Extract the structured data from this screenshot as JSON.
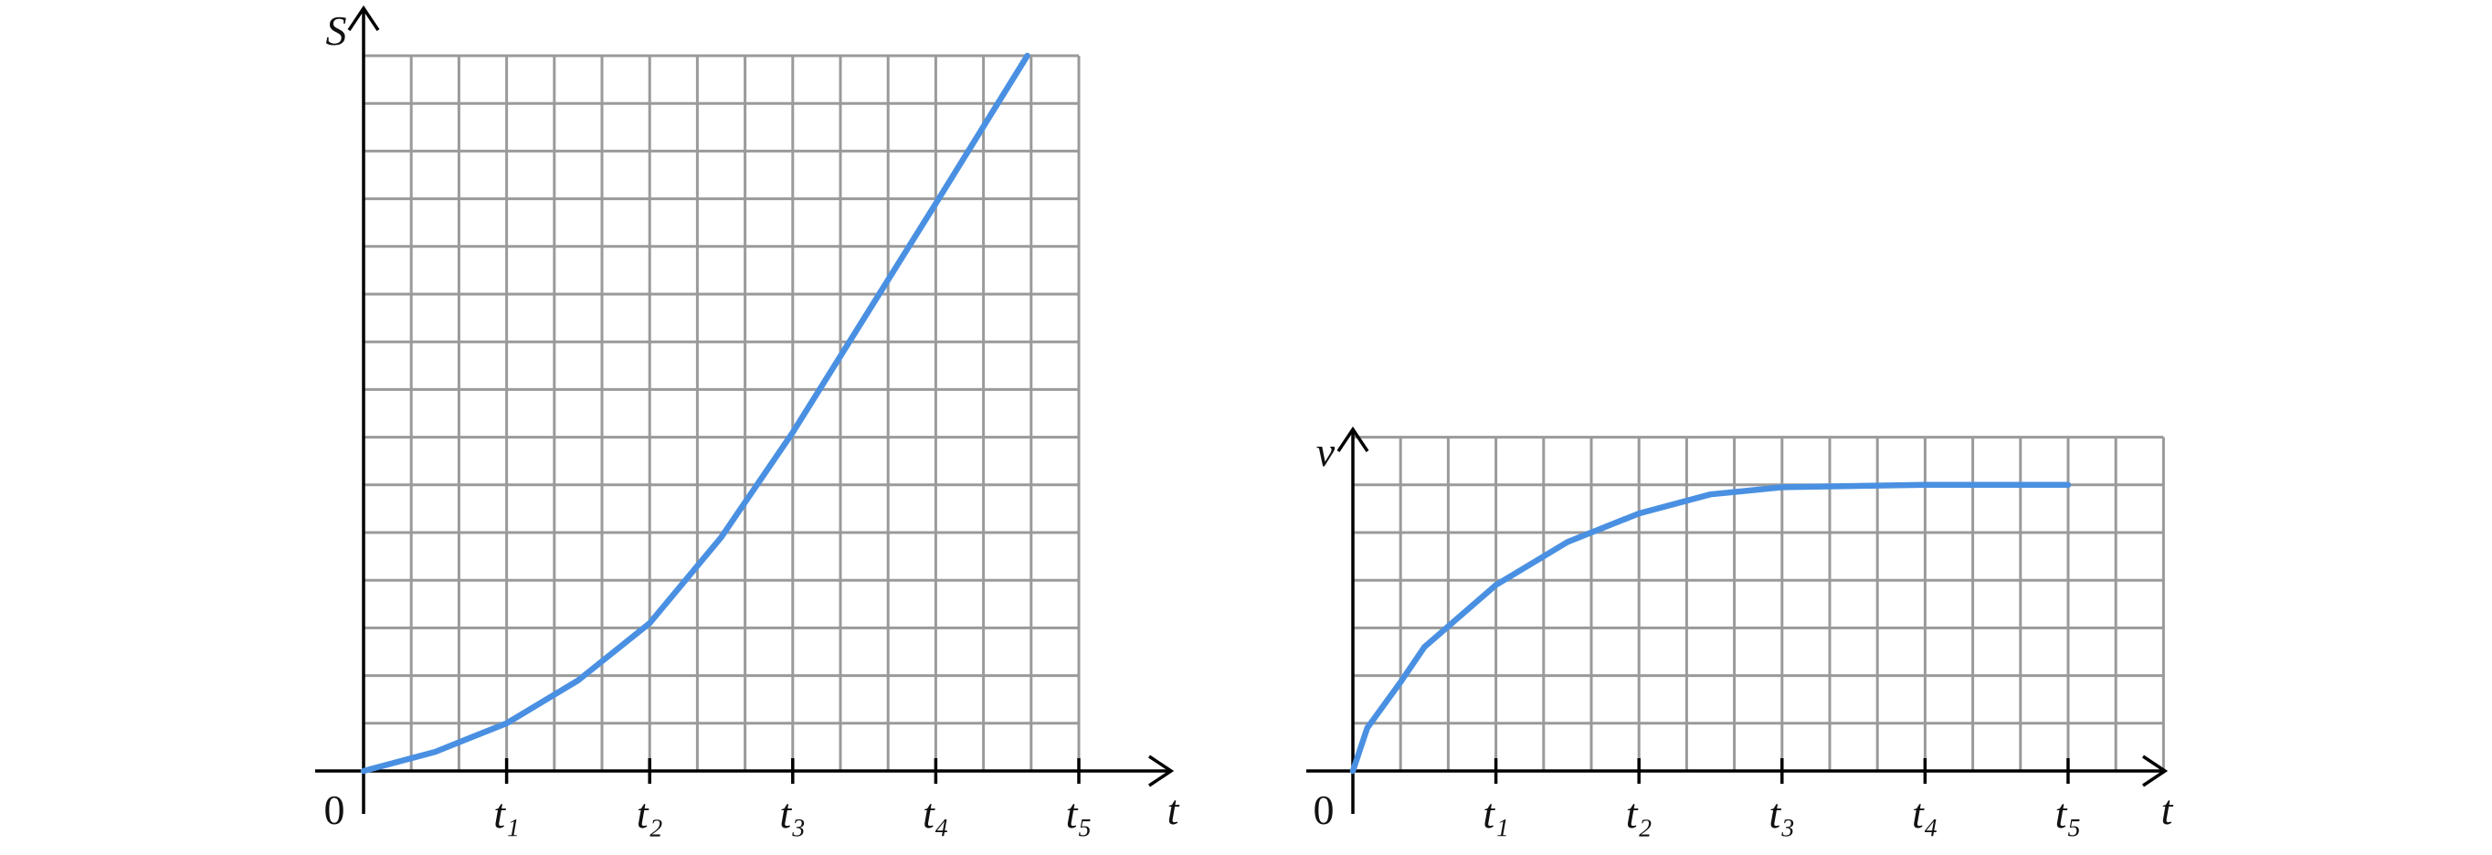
{
  "chart_data": [
    {
      "type": "line",
      "y_label": "S",
      "x_label": "t",
      "x": [
        0,
        0.5,
        1,
        1.5,
        2,
        2.5,
        3,
        3.5,
        4,
        4.33,
        4.64
      ],
      "values": [
        0,
        0.4,
        1,
        1.9,
        3.1,
        4.9,
        7.1,
        9.5,
        11.9,
        13.5,
        15
      ],
      "color": "#4a90e2",
      "xlim": [
        0,
        5
      ],
      "ylim": [
        0,
        15
      ],
      "xticks": [
        0,
        {
          "value": 1,
          "label": "t₁"
        },
        {
          "value": 2,
          "label": "t₂"
        },
        {
          "value": 3,
          "label": "t₃"
        },
        {
          "value": 4,
          "label": "t₄"
        },
        {
          "value": 5,
          "label": "t₅"
        }
      ],
      "grid": true
    },
    {
      "type": "line",
      "y_label": "v",
      "x_label": "t",
      "x": [
        0,
        0.1,
        0.33,
        0.5,
        1,
        1.5,
        2,
        2.5,
        3,
        4,
        5
      ],
      "values": [
        0,
        0.9,
        1.85,
        2.6,
        3.9,
        4.8,
        5.4,
        5.8,
        5.95,
        6,
        6
      ],
      "color": "#4a90e2",
      "xlim": [
        0,
        5.667
      ],
      "ylim": [
        0,
        7
      ],
      "xticks": [
        0,
        {
          "value": 1,
          "label": "t₁"
        },
        {
          "value": 2,
          "label": "t₂"
        },
        {
          "value": 3,
          "label": "t₃"
        },
        {
          "value": 4,
          "label": "t₄"
        },
        {
          "value": 5,
          "label": "t₅"
        }
      ],
      "grid": true
    }
  ]
}
